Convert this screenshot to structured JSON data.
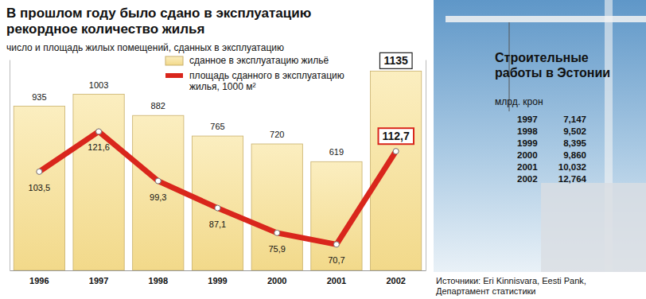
{
  "chart_data": {
    "type": "bar",
    "title": "В прошлом году было сдано в эксплуатацию рекордное количество жилья",
    "subtitle": "число и площадь жилых помещений, сданных в эксплуатацию",
    "categories": [
      "1996",
      "1997",
      "1998",
      "1999",
      "2000",
      "2001",
      "2002"
    ],
    "series": [
      {
        "name": "сданное в эксплуатацию жильё",
        "type": "bar",
        "color": "#f2d98a",
        "values": [
          935,
          1003,
          882,
          765,
          720,
          619,
          1135
        ]
      },
      {
        "name": "площадь сданного в эксплуатацию жилья, 1000 м²",
        "type": "line",
        "axis": "y2",
        "color": "#d9261c",
        "marker": "circle",
        "values": [
          103.5,
          121.6,
          99.3,
          87.1,
          75.9,
          70.7,
          112.7
        ],
        "value_labels": [
          "103,5",
          "121,6",
          "99,3",
          "87,1",
          "75,9",
          "70,7",
          "112,7"
        ]
      }
    ],
    "ylim": [
      0,
      1200
    ],
    "y2lim": [
      59,
      154
    ],
    "tick_labels": "x",
    "legend": "top",
    "data_labels": true,
    "source": "Источники: Eri Kinnisvara, Eesti Pank, Департамент статистики"
  },
  "side_panel": {
    "title": "Строительные работы в Эстонии",
    "unit": "млрд. крон",
    "rows": [
      [
        "1997",
        "7,147"
      ],
      [
        "1998",
        "9,502"
      ],
      [
        "1999",
        "8,395"
      ],
      [
        "2000",
        "9,860"
      ],
      [
        "2001",
        "10,032"
      ],
      [
        "2002",
        "12,764"
      ]
    ]
  }
}
